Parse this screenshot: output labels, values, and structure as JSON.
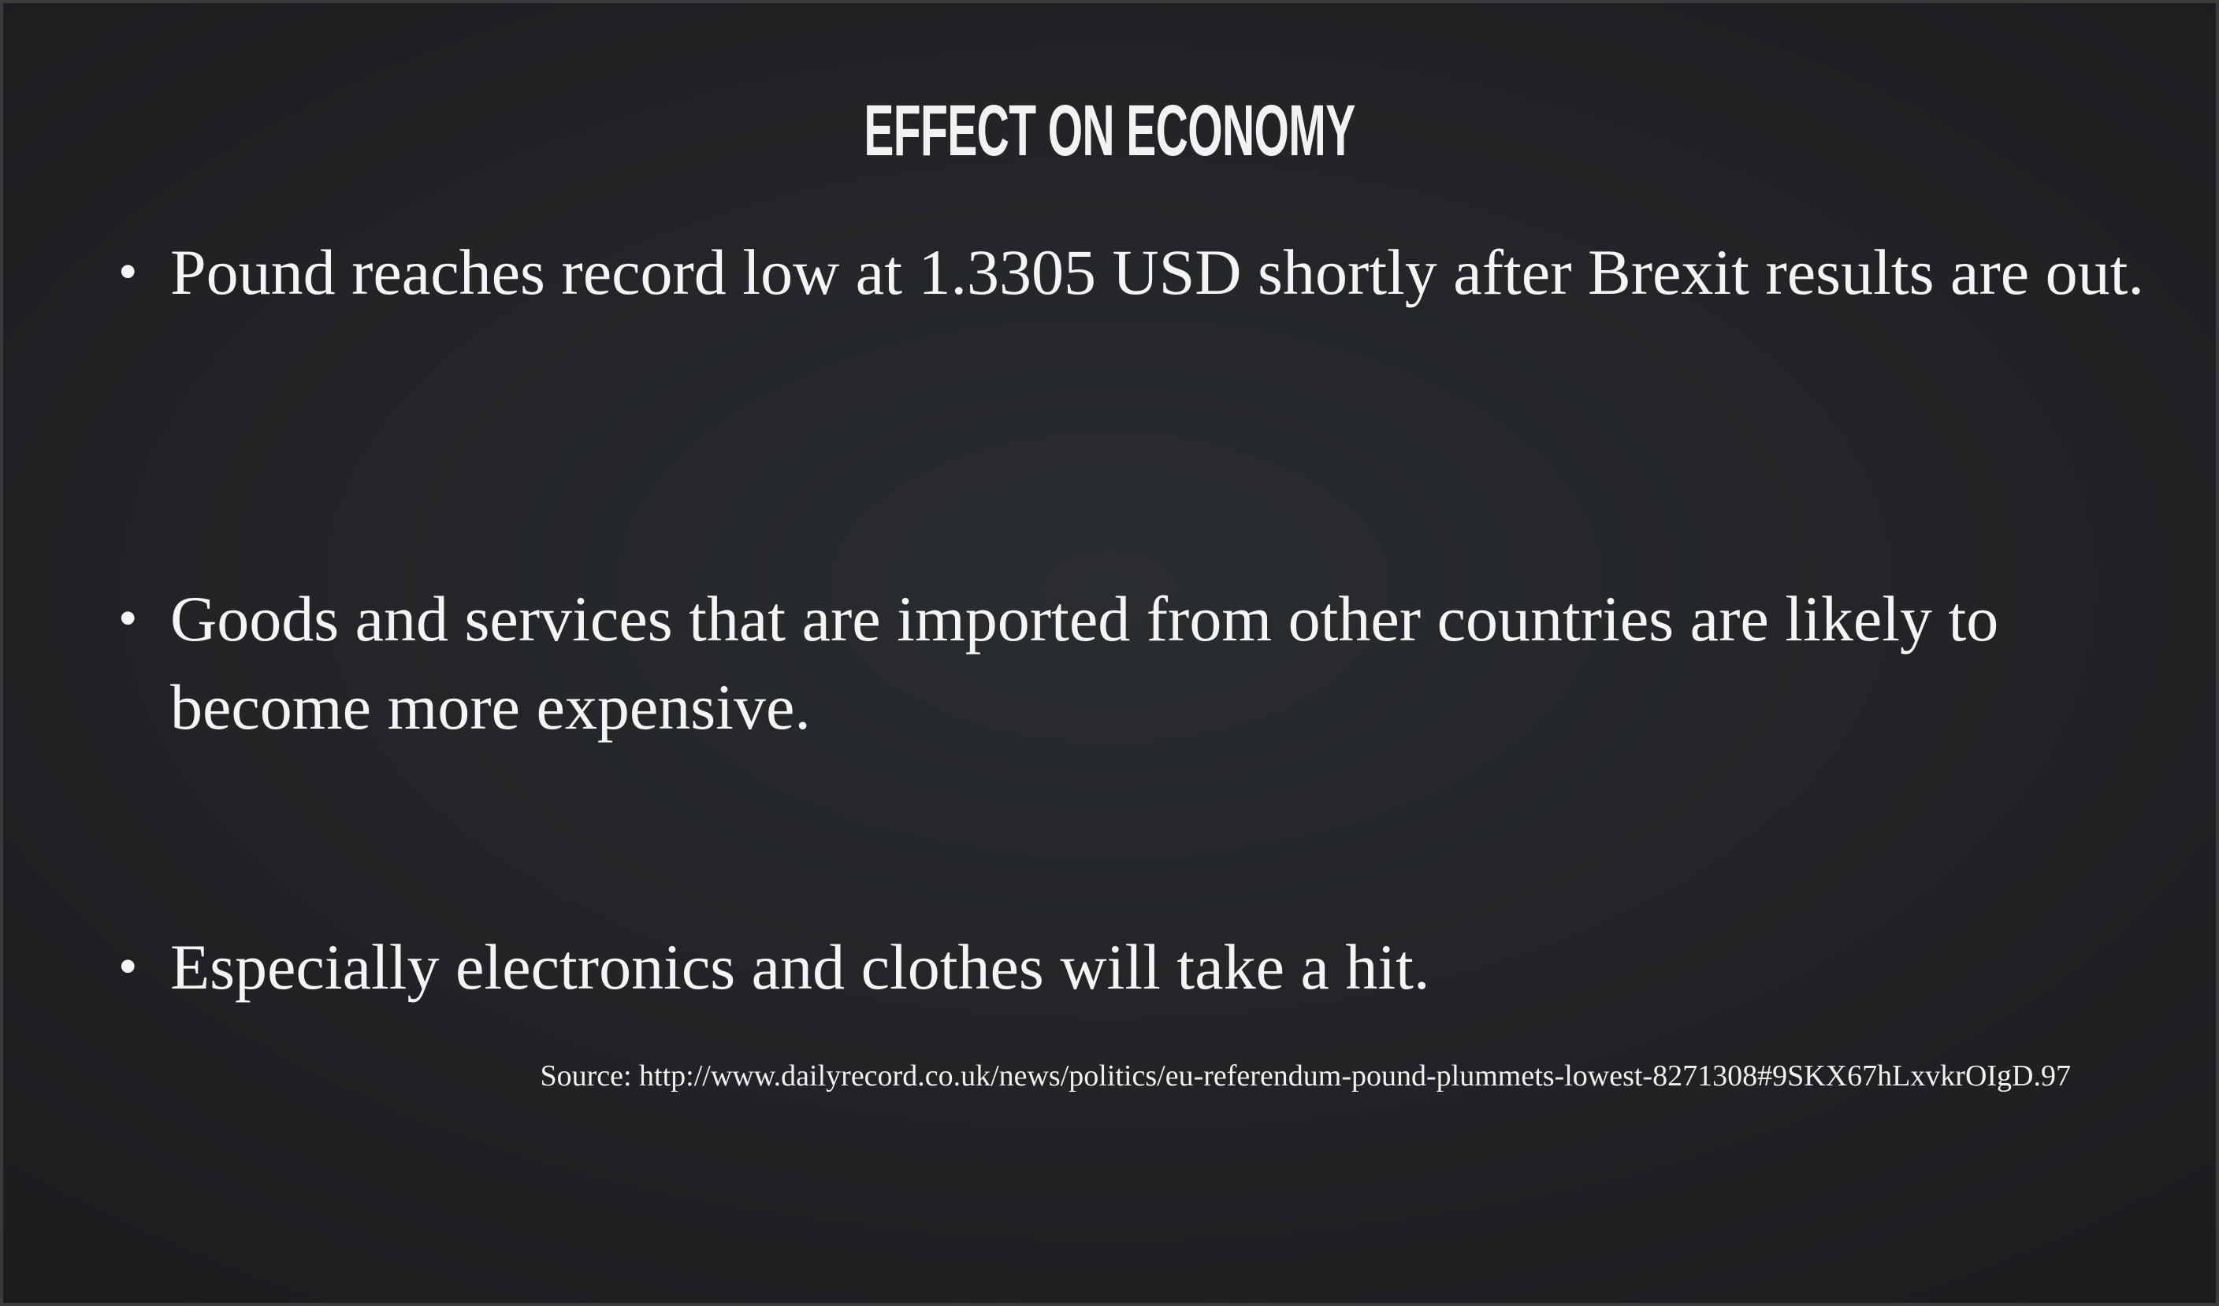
{
  "slide": {
    "title": "EFFECT ON ECONOMY",
    "bullets": [
      {
        "text": "Pound reaches record low at 1.3305 USD shortly after Brexit results are out."
      },
      {
        "text": "Goods and services that are imported from other countries are likely to become more expensive."
      },
      {
        "text": "Especially electronics and clothes will take a hit."
      }
    ],
    "source": "Source: http://www.dailyrecord.co.uk/news/politics/eu-referendum-pound-plummets-lowest-8271308#9SKX67hLxvkrOIgD.97"
  },
  "colors": {
    "background": "#232528",
    "text": "#f4f4f4"
  }
}
